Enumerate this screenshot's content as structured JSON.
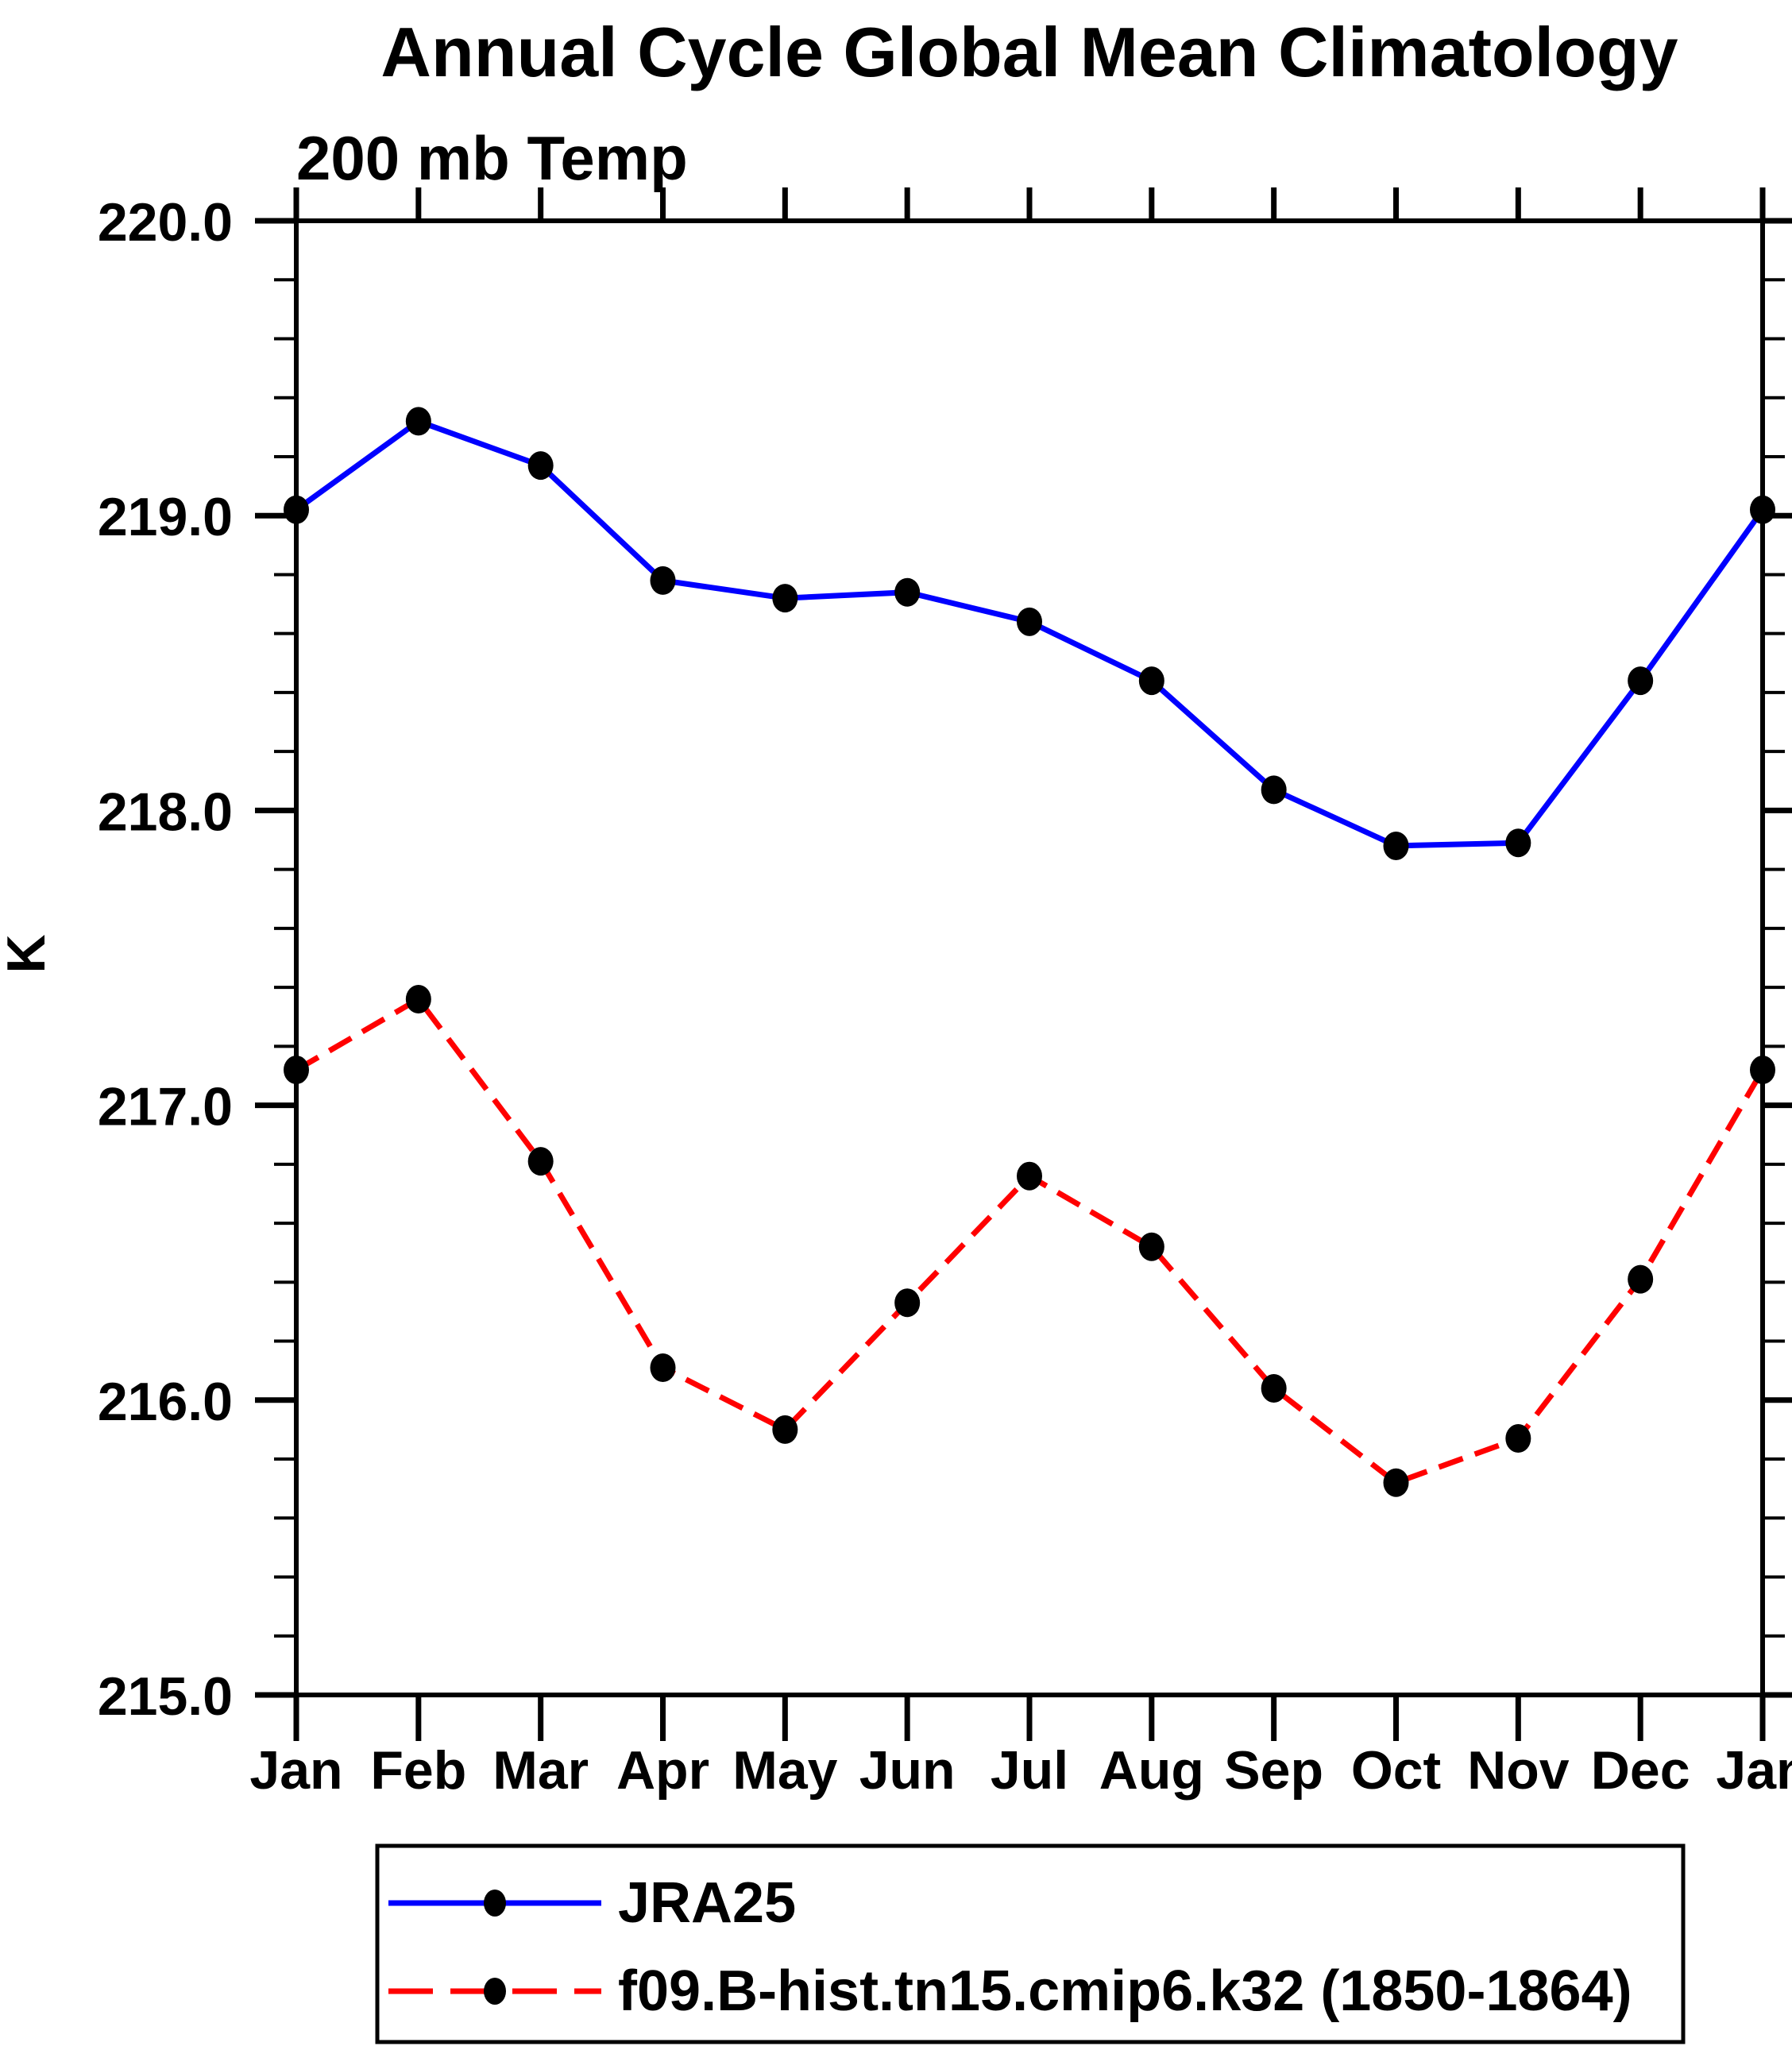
{
  "page": {
    "background_color": "#ffffff",
    "text_color": "#000000"
  },
  "chart_data": {
    "type": "line",
    "title": "Annual Cycle Global Mean Climatology",
    "subtitle": "200 mb Temp",
    "ylabel": "K",
    "xlabel": "",
    "x_categories": [
      "Jan",
      "Feb",
      "Mar",
      "Apr",
      "May",
      "Jun",
      "Jul",
      "Aug",
      "Sep",
      "Oct",
      "Nov",
      "Dec",
      "Jan"
    ],
    "ylim": [
      215.0,
      220.0
    ],
    "ytick_major_interval": 1.0,
    "ytick_minor_interval": 0.2,
    "ytick_labels": [
      "220.0",
      "219.0",
      "218.0",
      "217.0",
      "216.0",
      "215.0"
    ],
    "grid": false,
    "legend_position": "bottom-left-box",
    "marker": "filled-circle",
    "marker_color": "#000000",
    "series": [
      {
        "name": "JRA25",
        "color": "#0000ff",
        "line_style": "solid",
        "values": [
          219.02,
          219.32,
          219.17,
          218.78,
          218.72,
          218.74,
          218.64,
          218.44,
          218.07,
          217.88,
          217.89,
          218.44,
          219.02
        ]
      },
      {
        "name": "f09.B-hist.tn15.cmip6.k32 (1850-1864)",
        "color": "#ff0000",
        "line_style": "dashed",
        "values": [
          217.12,
          217.36,
          216.81,
          216.11,
          215.9,
          216.33,
          216.76,
          216.52,
          216.04,
          215.72,
          215.87,
          216.41,
          217.12
        ]
      }
    ]
  }
}
